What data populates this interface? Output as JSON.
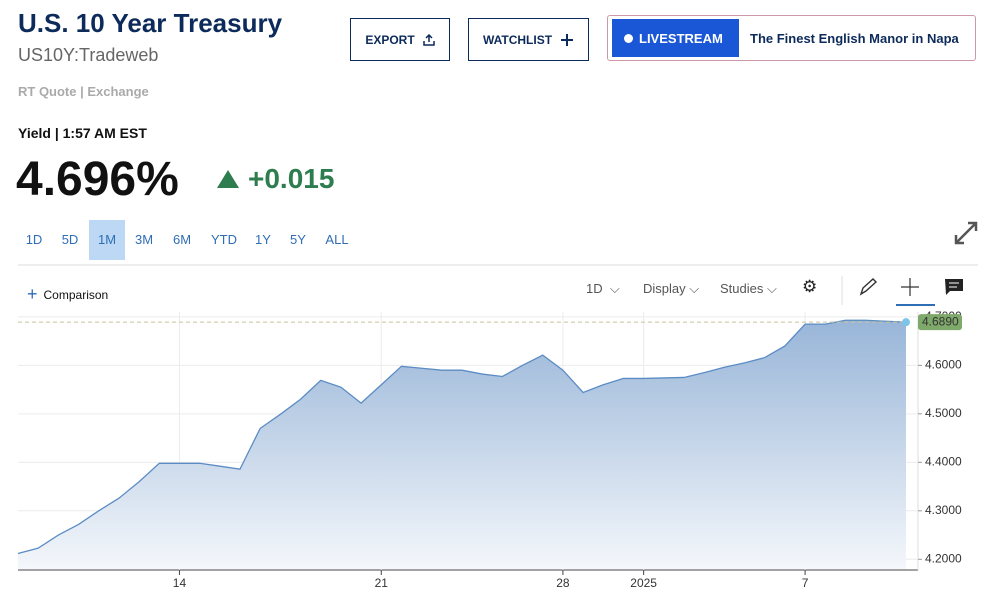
{
  "header": {
    "title": "U.S. 10 Year Treasury",
    "symbol": "US10Y:Tradeweb",
    "quote_type": "RT Quote | Exchange"
  },
  "buttons": {
    "export": "EXPORT",
    "watchlist": "WATCHLIST",
    "livestream": "LIVESTREAM",
    "promo": "The Finest English Manor in Napa"
  },
  "quote": {
    "label": "Yield | 1:57 AM EST",
    "price": "4.696%",
    "change": "+0.015"
  },
  "ranges": [
    "1D",
    "5D",
    "1M",
    "3M",
    "6M",
    "YTD",
    "1Y",
    "5Y",
    "ALL"
  ],
  "toolbar": {
    "comparison": "Comparison",
    "interval": "1D",
    "display": "Display",
    "studies": "Studies"
  },
  "chart_data": {
    "type": "area",
    "categories": [
      null,
      null,
      null,
      null,
      null,
      null,
      null,
      null,
      "14",
      null,
      null,
      null,
      null,
      null,
      null,
      null,
      null,
      null,
      "21",
      null,
      null,
      null,
      null,
      null,
      null,
      null,
      null,
      "28",
      null,
      null,
      null,
      "2025",
      null,
      null,
      null,
      null,
      null,
      null,
      null,
      "7",
      null,
      null,
      null,
      null,
      null
    ],
    "series": [
      {
        "color": "#5b8cc4",
        "values": [
          4.212,
          4.223,
          4.25,
          4.272,
          4.3,
          4.326,
          4.36,
          4.398,
          4.398,
          4.398,
          4.392,
          4.386,
          4.47,
          4.499,
          4.53,
          4.569,
          4.555,
          4.522,
          4.56,
          4.598,
          4.594,
          4.59,
          4.59,
          4.582,
          4.577,
          4.6,
          4.621,
          4.59,
          4.544,
          4.56,
          4.573,
          4.573,
          4.574,
          4.575,
          4.585,
          4.596,
          4.605,
          4.616,
          4.64,
          4.685,
          4.685,
          4.693,
          4.693,
          4.691,
          4.689
        ],
        "value_labels": [
          null,
          null,
          null,
          null,
          null,
          null,
          null,
          null,
          null,
          null,
          null,
          null,
          null,
          null,
          null,
          null,
          null,
          null,
          null,
          null,
          null,
          null,
          null,
          null,
          null,
          null,
          null,
          null,
          null,
          null,
          null,
          null,
          null,
          null,
          null,
          null,
          null,
          null,
          null,
          null,
          null,
          null,
          null,
          null,
          "4.6890"
        ]
      }
    ],
    "ylim": [
      4.18,
      4.71
    ],
    "yticks": [
      {
        "value": 4.2,
        "label": "4.2000"
      },
      {
        "value": 4.3,
        "label": "4.3000"
      },
      {
        "value": 4.4,
        "label": "4.4000"
      },
      {
        "value": 4.5,
        "label": "4.5000"
      },
      {
        "value": 4.6,
        "label": "4.6000"
      },
      {
        "value": 4.7,
        "label": "4.7000"
      }
    ],
    "grid": true
  }
}
